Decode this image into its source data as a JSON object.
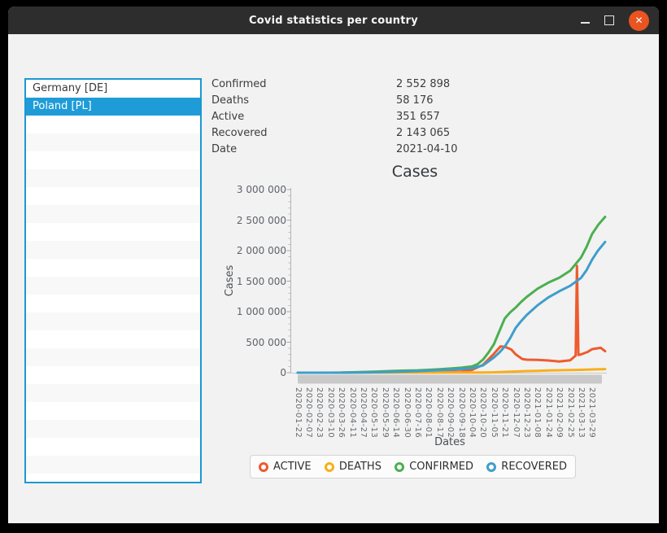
{
  "window": {
    "title": "Covid statistics per country",
    "controls": {
      "close_glyph": "✕"
    }
  },
  "country_list": {
    "items": [
      {
        "label": "Germany [DE]",
        "selected": false
      },
      {
        "label": "Poland [PL]",
        "selected": true
      }
    ],
    "total_rows": 22
  },
  "stats": {
    "rows": [
      {
        "label": "Confirmed",
        "value": "2 552 898"
      },
      {
        "label": "Deaths",
        "value": "58 176"
      },
      {
        "label": "Active",
        "value": "351 657"
      },
      {
        "label": "Recovered",
        "value": "2 143 065"
      },
      {
        "label": "Date",
        "value": "2021-04-10"
      }
    ]
  },
  "chart_data": {
    "type": "line",
    "title": "Cases",
    "xlabel": "Dates",
    "ylabel": "Cases",
    "ylim": [
      0,
      3000000
    ],
    "grid": false,
    "legend_position": "bottom",
    "y_tick_values": [
      0,
      500000,
      1000000,
      1500000,
      2000000,
      2500000,
      3000000
    ],
    "y_tick_labels": [
      "0",
      "500 000",
      "1 000 000",
      "1 500 000",
      "2 000 000",
      "2 500 000",
      "3 000 000"
    ],
    "x_tick_labels": [
      "2020-01-22",
      "2020-02-07",
      "2020-02-23",
      "2020-03-10",
      "2020-03-26",
      "2020-04-11",
      "2020-04-27",
      "2020-05-13",
      "2020-05-29",
      "2020-06-14",
      "2020-06-30",
      "2020-07-16",
      "2020-08-01",
      "2020-08-17",
      "2020-09-02",
      "2020-09-18",
      "2020-10-04",
      "2020-10-20",
      "2020-11-05",
      "2020-11-21",
      "2020-12-07",
      "2020-12-23",
      "2021-01-08",
      "2021-01-24",
      "2021-02-09",
      "2021-02-25",
      "2021-03-13",
      "2021-03-29"
    ],
    "series": [
      {
        "name": "ACTIVE",
        "color": "#ee5b2e",
        "points": [
          [
            0,
            0
          ],
          [
            3,
            22
          ],
          [
            4,
            1150
          ],
          [
            5,
            4600
          ],
          [
            6,
            7000
          ],
          [
            7,
            8600
          ],
          [
            8,
            9800
          ],
          [
            9,
            10400
          ],
          [
            10,
            9600
          ],
          [
            11,
            9100
          ],
          [
            12,
            10300
          ],
          [
            13,
            13000
          ],
          [
            14,
            15800
          ],
          [
            15,
            19000
          ],
          [
            16,
            47000
          ],
          [
            17,
            130000
          ],
          [
            18,
            310000
          ],
          [
            18.6,
            430000
          ],
          [
            19,
            425000
          ],
          [
            19.6,
            380000
          ],
          [
            20,
            300000
          ],
          [
            20.6,
            225000
          ],
          [
            21,
            213000
          ],
          [
            22,
            210000
          ],
          [
            23,
            200000
          ],
          [
            24,
            182000
          ],
          [
            25,
            203000
          ],
          [
            25.5,
            280000
          ],
          [
            25.62,
            1750000
          ],
          [
            25.75,
            290000
          ],
          [
            26,
            300000
          ],
          [
            26.6,
            340000
          ],
          [
            27,
            385000
          ],
          [
            27.8,
            408000
          ],
          [
            28.2,
            351657
          ]
        ]
      },
      {
        "name": "DEATHS",
        "color": "#f9ae1b",
        "points": [
          [
            0,
            0
          ],
          [
            8,
            800
          ],
          [
            10,
            1463
          ],
          [
            14,
            2100
          ],
          [
            16,
            2900
          ],
          [
            17,
            4100
          ],
          [
            18,
            6800
          ],
          [
            19,
            12700
          ],
          [
            20,
            19900
          ],
          [
            21,
            26300
          ],
          [
            22,
            31200
          ],
          [
            23,
            35400
          ],
          [
            24,
            39400
          ],
          [
            25,
            42800
          ],
          [
            26,
            47200
          ],
          [
            27,
            53000
          ],
          [
            28.2,
            58176
          ]
        ]
      },
      {
        "name": "CONFIRMED",
        "color": "#4caf50",
        "points": [
          [
            0,
            0
          ],
          [
            2,
            5
          ],
          [
            3,
            22
          ],
          [
            4,
            1221
          ],
          [
            5,
            6356
          ],
          [
            6,
            11902
          ],
          [
            7,
            17615
          ],
          [
            8,
            23155
          ],
          [
            9,
            29017
          ],
          [
            10,
            34393
          ],
          [
            11,
            39054
          ],
          [
            12,
            46346
          ],
          [
            13,
            56684
          ],
          [
            14,
            68517
          ],
          [
            15,
            80699
          ],
          [
            16,
            102080
          ],
          [
            16.5,
            140000
          ],
          [
            17,
            214686
          ],
          [
            17.5,
            330000
          ],
          [
            18,
            466679
          ],
          [
            18.5,
            680000
          ],
          [
            19,
            891136
          ],
          [
            19.5,
            990000
          ],
          [
            20,
            1067870
          ],
          [
            20.5,
            1160000
          ],
          [
            21,
            1239998
          ],
          [
            22,
            1376389
          ],
          [
            23,
            1475445
          ],
          [
            24,
            1556685
          ],
          [
            25,
            1671688
          ],
          [
            26,
            1889656
          ],
          [
            26.5,
            2060000
          ],
          [
            27,
            2270478
          ],
          [
            27.6,
            2430000
          ],
          [
            28.2,
            2552898
          ]
        ]
      },
      {
        "name": "RECOVERED",
        "color": "#3f9ecb",
        "points": [
          [
            0,
            0
          ],
          [
            4,
            100
          ],
          [
            6,
            3000
          ],
          [
            8,
            10000
          ],
          [
            10,
            20000
          ],
          [
            12,
            33000
          ],
          [
            14,
            50000
          ],
          [
            16,
            72000
          ],
          [
            17,
            120000
          ],
          [
            18,
            250000
          ],
          [
            18.5,
            330000
          ],
          [
            19,
            428000
          ],
          [
            19.5,
            570000
          ],
          [
            20,
            734000
          ],
          [
            20.5,
            845000
          ],
          [
            21,
            944000
          ],
          [
            22,
            1104000
          ],
          [
            23,
            1234000
          ],
          [
            24,
            1334000
          ],
          [
            25,
            1424000
          ],
          [
            26,
            1555000
          ],
          [
            26.5,
            1680000
          ],
          [
            27,
            1850000
          ],
          [
            27.5,
            1990000
          ],
          [
            28.2,
            2143065
          ]
        ]
      }
    ],
    "legend": [
      {
        "name": "ACTIVE",
        "color": "#ee5b2e"
      },
      {
        "name": "DEATHS",
        "color": "#f9ae1b"
      },
      {
        "name": "CONFIRMED",
        "color": "#4caf50"
      },
      {
        "name": "RECOVERED",
        "color": "#3f9ecb"
      }
    ]
  }
}
